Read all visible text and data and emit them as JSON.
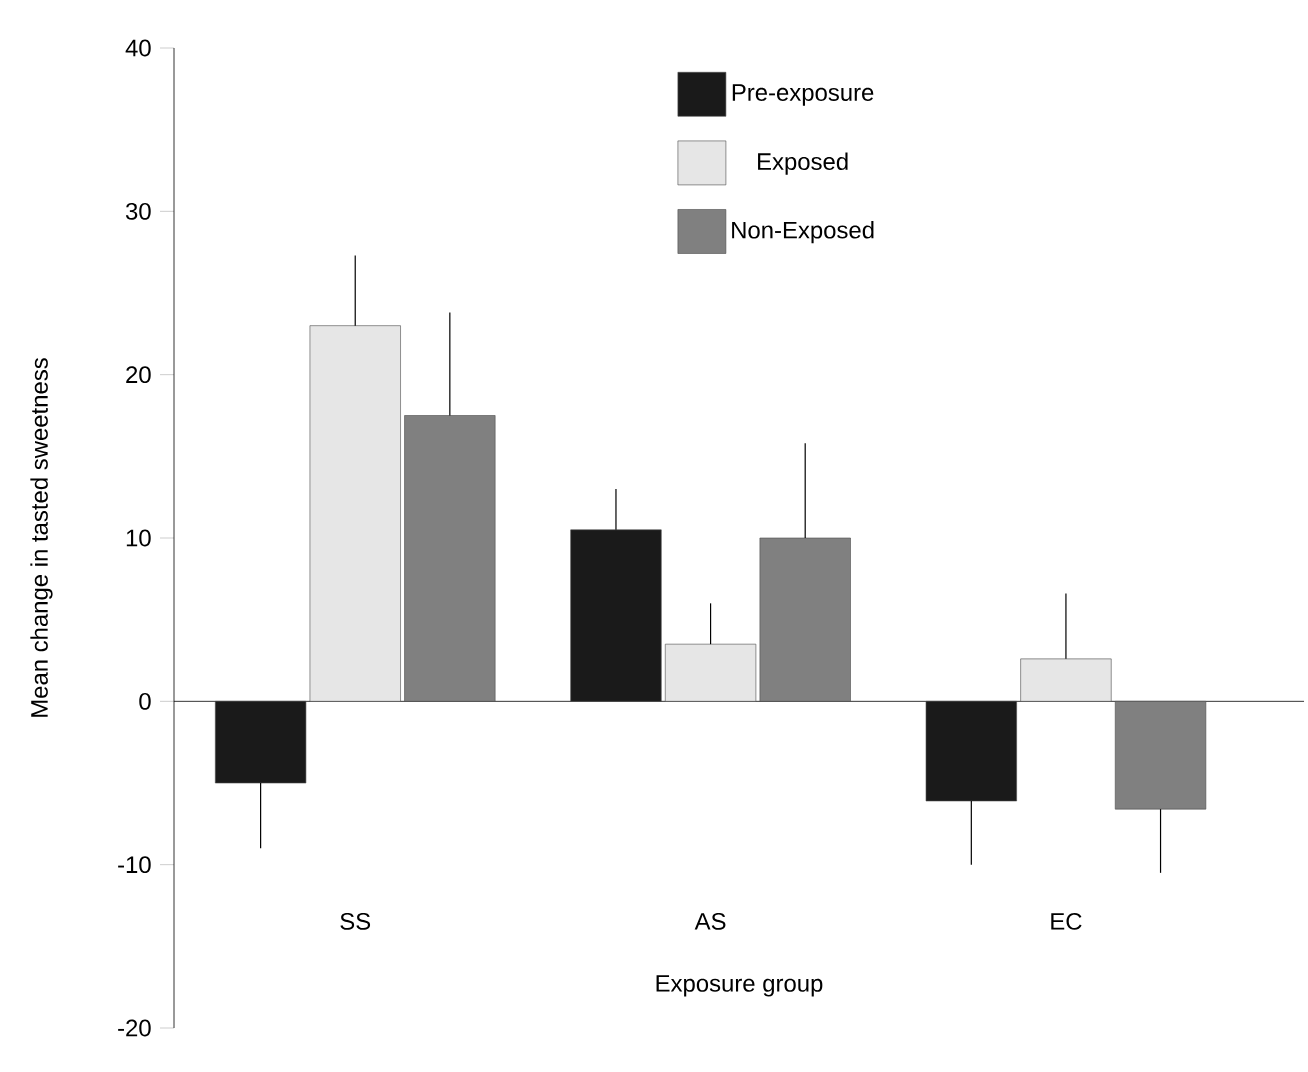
{
  "chart_data": {
    "type": "bar",
    "xlabel": "Exposure group",
    "ylabel": "Mean change in tasted sweetness",
    "categories": [
      "SS",
      "AS",
      "EC"
    ],
    "series": [
      {
        "name": "Pre-exposure",
        "color": "#1a1a1a",
        "values": [
          -5,
          10.5,
          -6.1
        ],
        "errors": [
          [
            -9,
            -5
          ],
          [
            10.5,
            13
          ],
          [
            -10,
            -6.1
          ]
        ]
      },
      {
        "name": "Exposed",
        "color": "#e6e6e6",
        "values": [
          23,
          3.5,
          2.6
        ],
        "errors": [
          [
            23,
            27.3
          ],
          [
            3.5,
            6
          ],
          [
            2.6,
            6.6
          ]
        ]
      },
      {
        "name": "Non-Exposed",
        "color": "#808080",
        "values": [
          17.5,
          10,
          -6.6
        ],
        "errors": [
          [
            17.5,
            23.8
          ],
          [
            10,
            15.8
          ],
          [
            -10.5,
            -6.6
          ]
        ]
      }
    ],
    "ylim": [
      -20,
      40
    ],
    "yticks": [
      -20,
      -10,
      0,
      10,
      20,
      30,
      40
    ],
    "legend": "top right"
  }
}
